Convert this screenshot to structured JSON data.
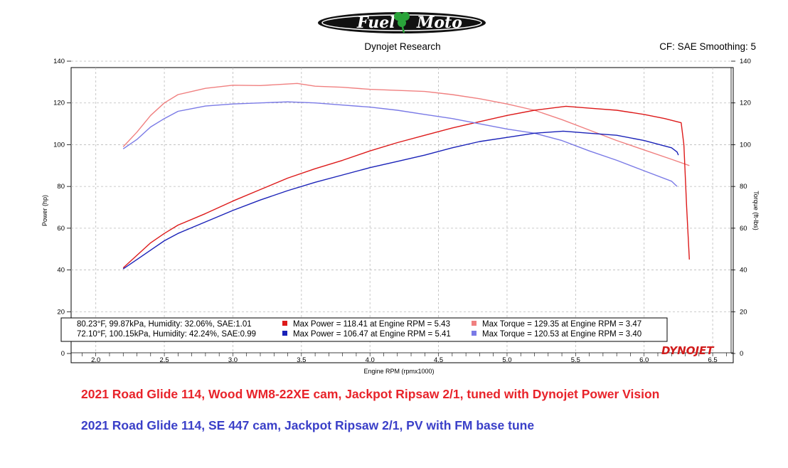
{
  "header": {
    "logo_text": "Fuel Moto",
    "center_title": "Dynojet Research",
    "right_info": "CF: SAE Smoothing: 5"
  },
  "brand": {
    "dynojet_logo": "DYNOJET"
  },
  "colors": {
    "run1_power": "#dd1a1a",
    "run1_torque": "#f08080",
    "run2_power": "#1a22b8",
    "run2_torque": "#7a7ae6",
    "caption_red": "#e8232a",
    "caption_blue": "#3a3fc8"
  },
  "captions": {
    "run1": "2021 Road Glide 114, Wood WM8-22XE cam, Jackpot Ripsaw 2/1, tuned with Dynojet Power Vision",
    "run2": "2021 Road Glide 114, SE 447 cam, Jackpot Ripsaw 2/1, PV with FM base tune"
  },
  "chart_data": {
    "type": "line",
    "xlabel": "Engine RPM (rpmx1000)",
    "ylabel_left": "Power (hp)",
    "ylabel_right": "Torque (ft-lbs)",
    "xlim": [
      1.82,
      6.65
    ],
    "ylim": [
      0,
      140
    ],
    "x_ticks": [
      "2.0",
      "2.5",
      "3.0",
      "3.5",
      "4.0",
      "4.5",
      "5.0",
      "5.5",
      "6.0",
      "6.5"
    ],
    "y_ticks": [
      "0",
      "20",
      "40",
      "60",
      "80",
      "100",
      "120",
      "140"
    ],
    "grid": true,
    "legend_position": "bottom-center",
    "legend": [
      {
        "conditions": "80.23°F, 99.87kPa, Humidity: 32.06%, SAE:1.01",
        "power": "Max Power = 118.41 at Engine RPM = 5.43",
        "torque": "Max Torque = 129.35 at Engine RPM = 3.47"
      },
      {
        "conditions": "72.10°F, 100.15kPa, Humidity: 42.24%, SAE:0.99",
        "power": "Max Power = 106.47 at Engine RPM = 5.41",
        "torque": "Max Torque = 120.53 at Engine RPM = 3.40"
      }
    ],
    "series": [
      {
        "key": "run1_torque",
        "x": [
          2.2,
          2.3,
          2.4,
          2.5,
          2.6,
          2.8,
          3.0,
          3.2,
          3.47,
          3.6,
          3.8,
          4.0,
          4.2,
          4.4,
          4.6,
          4.8,
          5.0,
          5.2,
          5.4,
          5.6,
          5.8,
          6.0,
          6.2,
          6.33
        ],
        "values": [
          99,
          106,
          114,
          120,
          124,
          127,
          128.5,
          128.3,
          129.35,
          128,
          127.5,
          126.5,
          126,
          125.5,
          124,
          122,
          119.5,
          116.5,
          112,
          107,
          102,
          97.5,
          93,
          90
        ]
      },
      {
        "key": "run1_power",
        "x": [
          2.2,
          2.3,
          2.4,
          2.5,
          2.6,
          2.8,
          3.0,
          3.2,
          3.4,
          3.6,
          3.8,
          4.0,
          4.2,
          4.4,
          4.6,
          4.8,
          5.0,
          5.2,
          5.43,
          5.6,
          5.8,
          6.0,
          6.15,
          6.27,
          6.29,
          6.31,
          6.33
        ],
        "values": [
          41,
          47,
          53,
          57.5,
          61.5,
          67,
          73,
          78.5,
          84,
          88.5,
          92.5,
          97,
          101,
          104.5,
          108,
          111,
          114,
          116.5,
          118.41,
          117.5,
          116.5,
          114.5,
          112.5,
          110.5,
          100,
          70,
          45
        ]
      },
      {
        "key": "run2_torque",
        "x": [
          2.2,
          2.3,
          2.4,
          2.5,
          2.6,
          2.8,
          3.0,
          3.2,
          3.4,
          3.6,
          3.8,
          4.0,
          4.2,
          4.4,
          4.6,
          4.8,
          5.0,
          5.2,
          5.4,
          5.6,
          5.8,
          6.0,
          6.2,
          6.24
        ],
        "values": [
          98,
          102.5,
          108.5,
          112.5,
          116,
          118.5,
          119.5,
          120,
          120.53,
          120,
          119,
          118,
          116.5,
          114.5,
          112.5,
          110,
          107.5,
          105.5,
          102,
          97,
          92.5,
          87.5,
          82.5,
          80
        ]
      },
      {
        "key": "run2_power",
        "x": [
          2.2,
          2.3,
          2.4,
          2.5,
          2.6,
          2.8,
          3.0,
          3.2,
          3.4,
          3.6,
          3.8,
          4.0,
          4.2,
          4.4,
          4.6,
          4.8,
          5.0,
          5.2,
          5.41,
          5.6,
          5.8,
          6.0,
          6.2,
          6.24,
          6.25
        ],
        "values": [
          40.5,
          45,
          49.5,
          54,
          57.5,
          63,
          68.5,
          73.5,
          78,
          82,
          85.5,
          89,
          92,
          95,
          98.5,
          101.5,
          103.5,
          105.5,
          106.47,
          105.5,
          104.5,
          102,
          98.5,
          96.5,
          95
        ]
      }
    ]
  }
}
